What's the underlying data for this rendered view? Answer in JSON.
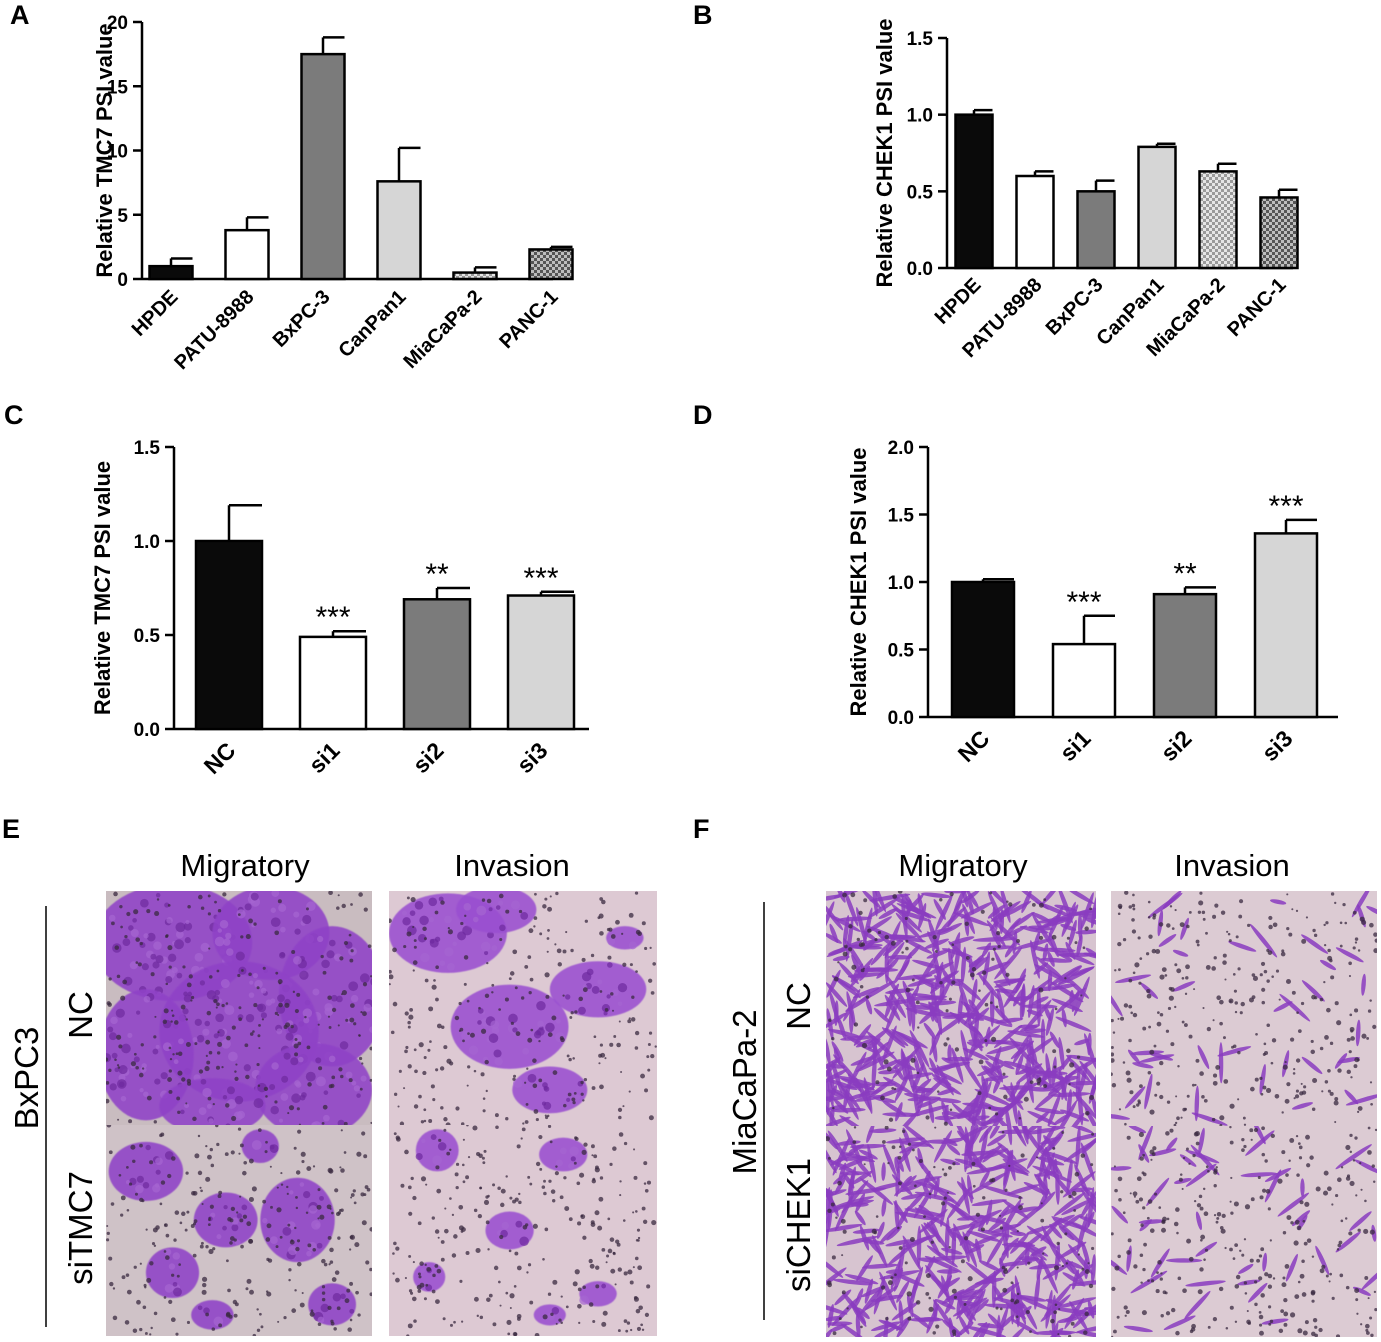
{
  "colors": {
    "black": "#0a0a0a",
    "white": "#ffffff",
    "dark_gray": "#7b7b7b",
    "light_gray": "#d6d6d6",
    "stain_purple": "#8a3cc0",
    "membrane_pink": "#d8c6cf"
  },
  "chart_data": [
    {
      "panel": "A",
      "type": "bar",
      "ylabel": "Relative TMC7 PSI value",
      "xlabel": "",
      "ylim": [
        0,
        20
      ],
      "yticks": [
        "0",
        "5",
        "10",
        "15",
        "20"
      ],
      "categories": [
        "HPDE",
        "PATU-8988",
        "BxPC-3",
        "CanPan1",
        "MiaCaPa-2",
        "PANC-1"
      ],
      "values": [
        1.0,
        3.8,
        17.5,
        7.6,
        0.5,
        2.3
      ],
      "errors": [
        0.6,
        1.0,
        1.3,
        2.6,
        0.4,
        0.2
      ],
      "fills": [
        "black",
        "white",
        "dark_gray",
        "light_gray",
        "checker_light",
        "checker_dark"
      ]
    },
    {
      "panel": "B",
      "type": "bar",
      "ylabel": "Relative CHEK1 PSI value",
      "xlabel": "",
      "ylim": [
        0,
        1.5
      ],
      "yticks": [
        "0.0",
        "0.5",
        "1.0",
        "1.5"
      ],
      "categories": [
        "HPDE",
        "PATU-8988",
        "BxPC-3",
        "CanPan1",
        "MiaCaPa-2",
        "PANC-1"
      ],
      "values": [
        1.0,
        0.6,
        0.5,
        0.79,
        0.63,
        0.46
      ],
      "errors": [
        0.03,
        0.03,
        0.07,
        0.02,
        0.05,
        0.05
      ],
      "fills": [
        "black",
        "white",
        "dark_gray",
        "light_gray",
        "checker_light",
        "checker_dark"
      ]
    },
    {
      "panel": "C",
      "type": "bar",
      "ylabel": "Relative TMC7 PSI value",
      "xlabel": "",
      "ylim": [
        0,
        1.5
      ],
      "yticks": [
        "0.0",
        "0.5",
        "1.0",
        "1.5"
      ],
      "categories": [
        "NC",
        "si1",
        "si2",
        "si3"
      ],
      "values": [
        1.0,
        0.49,
        0.69,
        0.71
      ],
      "errors": [
        0.19,
        0.03,
        0.06,
        0.02
      ],
      "significance": [
        "",
        "***",
        "**",
        "***"
      ],
      "fills": [
        "black",
        "white",
        "dark_gray",
        "light_gray"
      ]
    },
    {
      "panel": "D",
      "type": "bar",
      "ylabel": "Relative CHEK1 PSI value",
      "xlabel": "",
      "ylim": [
        0,
        2.0
      ],
      "yticks": [
        "0.0",
        "0.5",
        "1.0",
        "1.5",
        "2.0"
      ],
      "categories": [
        "NC",
        "si1",
        "si2",
        "si3"
      ],
      "values": [
        1.0,
        0.54,
        0.91,
        1.36
      ],
      "errors": [
        0.02,
        0.21,
        0.05,
        0.1
      ],
      "significance": [
        "",
        "***",
        "**",
        "***"
      ],
      "fills": [
        "black",
        "white",
        "dark_gray",
        "light_gray"
      ]
    }
  ],
  "micrographs": [
    {
      "panel": "E",
      "columns": [
        "Migratory",
        "Invasion"
      ],
      "cell_line": "BxPC3",
      "rows": [
        "NC",
        "siTMC7"
      ]
    },
    {
      "panel": "F",
      "columns": [
        "Migratory",
        "Invasion"
      ],
      "cell_line": "MiaCaPa-2",
      "rows": [
        "NC",
        "siCHEK1"
      ]
    }
  ]
}
